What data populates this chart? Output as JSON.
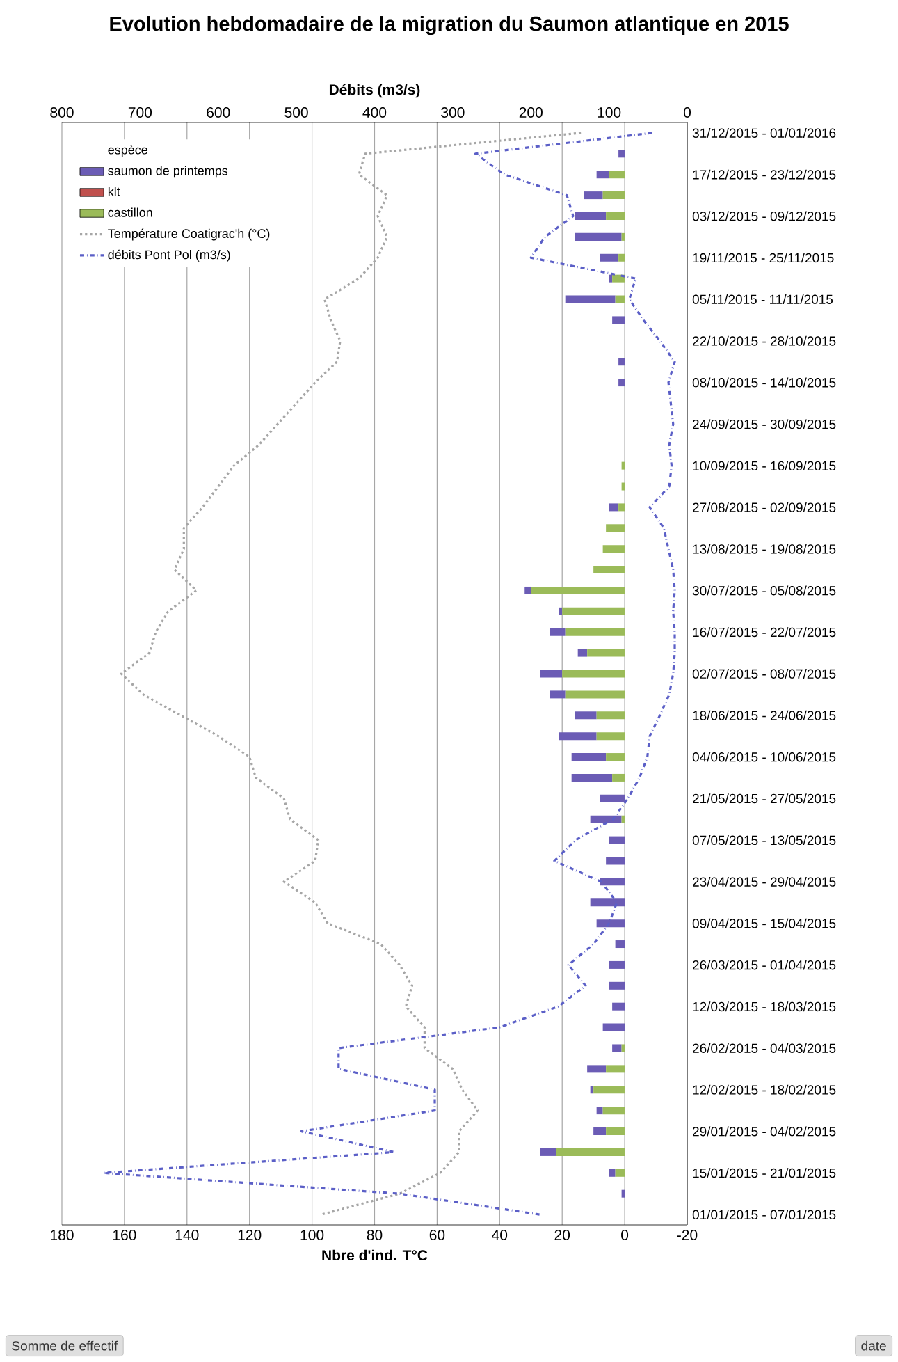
{
  "chart_data": {
    "type": "bar",
    "stacked": true,
    "orientation": "horizontal",
    "title": "Evolution hebdomadaire de la migration du Saumon atlantique en 2015",
    "xlabel": "Nbre d'ind. T°C",
    "x2label": "Débits (m3/s)",
    "legend_title": "espèce",
    "annotations": [
      "Somme de effectif",
      "date"
    ],
    "categories": [
      "31/12/2015 - 01/01/2016",
      null,
      "17/12/2015 - 23/12/2015",
      null,
      "03/12/2015 - 09/12/2015",
      null,
      "19/11/2015 - 25/11/2015",
      null,
      "05/11/2015 - 11/11/2015",
      null,
      "22/10/2015 - 28/10/2015",
      null,
      "08/10/2015 - 14/10/2015",
      null,
      "24/09/2015 - 30/09/2015",
      null,
      "10/09/2015 - 16/09/2015",
      null,
      "27/08/2015 - 02/09/2015",
      null,
      "13/08/2015 - 19/08/2015",
      null,
      "30/07/2015 - 05/08/2015",
      null,
      "16/07/2015 - 22/07/2015",
      null,
      "02/07/2015 - 08/07/2015",
      null,
      "18/06/2015 - 24/06/2015",
      null,
      "04/06/2015 - 10/06/2015",
      null,
      "21/05/2015 - 27/05/2015",
      null,
      "07/05/2015 - 13/05/2015",
      null,
      "23/04/2015 - 29/04/2015",
      null,
      "09/04/2015 - 15/04/2015",
      null,
      "26/03/2015 - 01/04/2015",
      null,
      "12/03/2015 - 18/03/2015",
      null,
      "26/02/2015 - 04/03/2015",
      null,
      "12/02/2015 - 18/02/2015",
      null,
      "29/01/2015 - 04/02/2015",
      null,
      "15/01/2015 - 21/01/2015",
      null,
      "01/01/2015 - 07/01/2015"
    ],
    "series": [
      {
        "name": "castillon",
        "color": "#9bbb59",
        "values": [
          0,
          0,
          5,
          7,
          6,
          1,
          2,
          4,
          3,
          0,
          0,
          0,
          0,
          0,
          0,
          0,
          1,
          1,
          2,
          6,
          7,
          10,
          30,
          20,
          19,
          12,
          20,
          19,
          9,
          9,
          6,
          4,
          0,
          1,
          0,
          0,
          0,
          0,
          0,
          0,
          0,
          0,
          0,
          0,
          1,
          6,
          10,
          7,
          6,
          22,
          3,
          0,
          0
        ]
      },
      {
        "name": "klt",
        "color": "#c0504d",
        "values": [
          0,
          0,
          0,
          0,
          0,
          0,
          0,
          0,
          0,
          0,
          0,
          0,
          0,
          0,
          0,
          0,
          0,
          0,
          0,
          0,
          0,
          0,
          0,
          0,
          0,
          0,
          0,
          0,
          0,
          0,
          0,
          0,
          0,
          0,
          0,
          0,
          0,
          0,
          0,
          0,
          0,
          0,
          0,
          0,
          0,
          0,
          0,
          0,
          0,
          0,
          0,
          0,
          0
        ]
      },
      {
        "name": "saumon de printemps",
        "color": "#6b5cb5",
        "values": [
          0,
          2,
          4,
          6,
          10,
          15,
          6,
          1,
          16,
          4,
          0,
          2,
          2,
          0,
          0,
          0,
          0,
          0,
          3,
          0,
          0,
          0,
          2,
          1,
          5,
          3,
          7,
          5,
          7,
          12,
          11,
          13,
          8,
          10,
          5,
          6,
          8,
          11,
          9,
          3,
          5,
          5,
          4,
          7,
          3,
          6,
          1,
          2,
          4,
          5,
          2,
          1,
          0
        ]
      },
      {
        "name": "Température Coatigrac'h (°C)",
        "type": "line",
        "line_style": "dotted",
        "color": "#a6a6a6",
        "values": [
          14,
          83,
          85,
          76,
          79,
          76,
          79,
          85,
          96,
          94,
          91,
          92,
          99,
          105,
          111,
          117,
          125,
          130,
          135,
          141,
          141,
          144,
          137,
          146,
          150,
          152,
          161,
          154,
          142,
          130,
          120,
          118,
          109,
          107,
          98,
          99,
          109,
          99,
          95,
          78,
          72,
          68,
          70,
          64,
          64,
          55,
          52,
          47,
          53,
          53,
          59,
          72,
          97
        ]
      },
      {
        "name": "débits Pont Pol (m3/s)",
        "type": "line",
        "axis": "x2",
        "line_style": "dashdot",
        "color": "#5b5fc7",
        "values": [
          45,
          271,
          234,
          154,
          146,
          182,
          200,
          66,
          74,
          56,
          35,
          16,
          24,
          21,
          18,
          23,
          20,
          23,
          48,
          30,
          24,
          18,
          16,
          18,
          16,
          16,
          18,
          23,
          35,
          48,
          51,
          61,
          76,
          95,
          143,
          170,
          110,
          90,
          100,
          120,
          152,
          130,
          165,
          240,
          446,
          446,
          323,
          323,
          494,
          375,
          747,
          368,
          189
        ]
      }
    ],
    "xlim": [
      180,
      -20
    ],
    "xticks": [
      180,
      160,
      140,
      120,
      100,
      80,
      60,
      40,
      20,
      0,
      -20
    ],
    "x2lim": [
      800,
      0
    ],
    "x2ticks": [
      800,
      700,
      600,
      500,
      400,
      300,
      200,
      100,
      0
    ],
    "grid": "x",
    "legend": "top left"
  }
}
